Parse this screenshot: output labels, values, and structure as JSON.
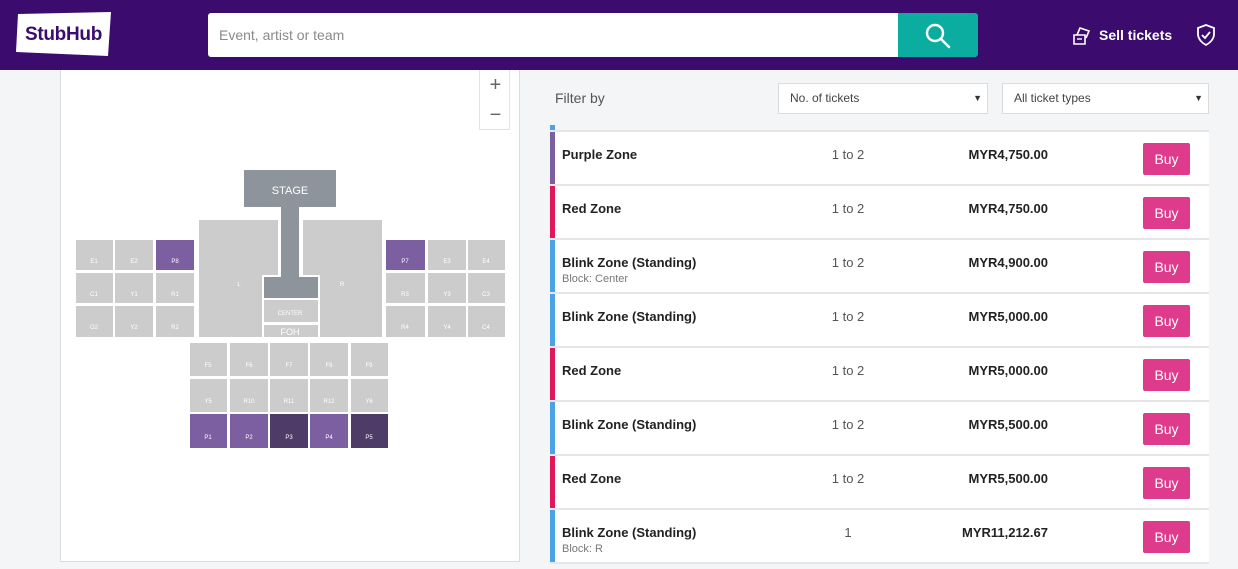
{
  "header": {
    "logo_text": "StubHub",
    "search_placeholder": "Event, artist or team",
    "sell_label": "Sell tickets"
  },
  "colors": {
    "header_bg": "#3b0b6e",
    "search_button": "#0aada0",
    "buy_button": "#de3b8c",
    "zone_purple": "#7b5fa0",
    "zone_red": "#e0185a",
    "zone_blink": "#4aa3e6"
  },
  "map": {
    "zoom_in": "+",
    "zoom_out": "−",
    "stage_label": "STAGE",
    "center_label": "CENTER",
    "foh_label": "FOH",
    "sections": {
      "l": "L",
      "r": "R",
      "e1": "E1",
      "e2": "E2",
      "p8": "P8",
      "c1": "C1",
      "y1": "Y1",
      "r1": "R1",
      "o2": "O2",
      "y2": "Y2",
      "r2": "R2",
      "p7": "P7",
      "e3": "E3",
      "e4": "E4",
      "r3": "R3",
      "y3": "Y3",
      "c3": "C3",
      "r4": "R4",
      "y4": "Y4",
      "c4": "C4",
      "f5": "F5",
      "f6": "F6",
      "f7": "F7",
      "f8": "F8",
      "f9": "F9",
      "y5": "Y5",
      "r10": "R10",
      "r11": "R11",
      "r12": "R12",
      "y6": "Y6",
      "p1": "P1",
      "p2": "P2",
      "p3": "P3",
      "p4": "P4",
      "p5": "P5"
    }
  },
  "filters": {
    "label": "Filter by",
    "tickets_select": "No. of tickets",
    "types_select": "All ticket types"
  },
  "listings": [
    {
      "zone": "Purple Zone",
      "block": "",
      "qty": "1 to 2",
      "price": "MYR4,750.00",
      "buy": "Buy",
      "color": "#7b5fa0"
    },
    {
      "zone": "Red Zone",
      "block": "",
      "qty": "1 to 2",
      "price": "MYR4,750.00",
      "buy": "Buy",
      "color": "#e0185a"
    },
    {
      "zone": "Blink Zone (Standing)",
      "block": "Block: Center",
      "qty": "1 to 2",
      "price": "MYR4,900.00",
      "buy": "Buy",
      "color": "#4aa3e6"
    },
    {
      "zone": "Blink Zone (Standing)",
      "block": "",
      "qty": "1 to 2",
      "price": "MYR5,000.00",
      "buy": "Buy",
      "color": "#4aa3e6"
    },
    {
      "zone": "Red Zone",
      "block": "",
      "qty": "1 to 2",
      "price": "MYR5,000.00",
      "buy": "Buy",
      "color": "#e0185a"
    },
    {
      "zone": "Blink Zone (Standing)",
      "block": "",
      "qty": "1 to 2",
      "price": "MYR5,500.00",
      "buy": "Buy",
      "color": "#4aa3e6"
    },
    {
      "zone": "Red Zone",
      "block": "",
      "qty": "1 to 2",
      "price": "MYR5,500.00",
      "buy": "Buy",
      "color": "#e0185a"
    },
    {
      "zone": "Blink Zone (Standing)",
      "block": "Block: R",
      "qty": "1",
      "price": "MYR11,212.67",
      "buy": "Buy",
      "color": "#4aa3e6"
    }
  ]
}
